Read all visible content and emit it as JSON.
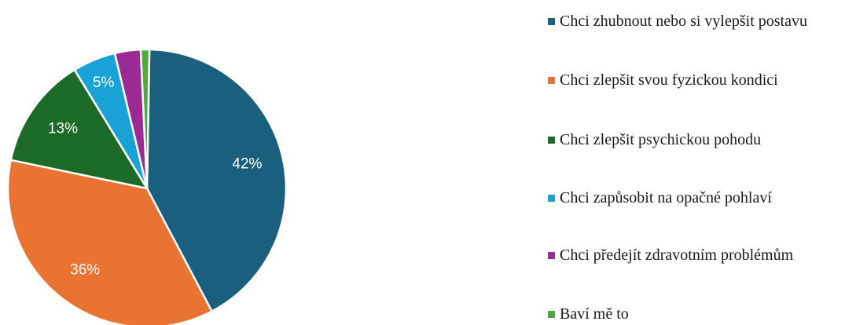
{
  "chart_data": {
    "type": "pie",
    "title": "",
    "legend_position": "right",
    "slices": [
      {
        "label": "Chci zhubnout nebo si vylepšit postavu",
        "value": 42,
        "display": "42%",
        "color": "#1a5f7e"
      },
      {
        "label": "Chci zlepšit svou fyzickou kondici",
        "value": 36,
        "display": "36%",
        "color": "#e97332"
      },
      {
        "label": "Chci zlepšit psychickou pohodu",
        "value": 13,
        "display": "13%",
        "color": "#1d6b28"
      },
      {
        "label": "Chci zapůsobit na opačné pohlaví",
        "value": 5,
        "display": "5%",
        "color": "#19a2d6"
      },
      {
        "label": "Chci předejít zdravotním problémům",
        "value": 3,
        "display": "",
        "color": "#9c2a94"
      },
      {
        "label": "Baví mě to",
        "value": 1,
        "display": "",
        "color": "#4fa93c"
      }
    ]
  }
}
